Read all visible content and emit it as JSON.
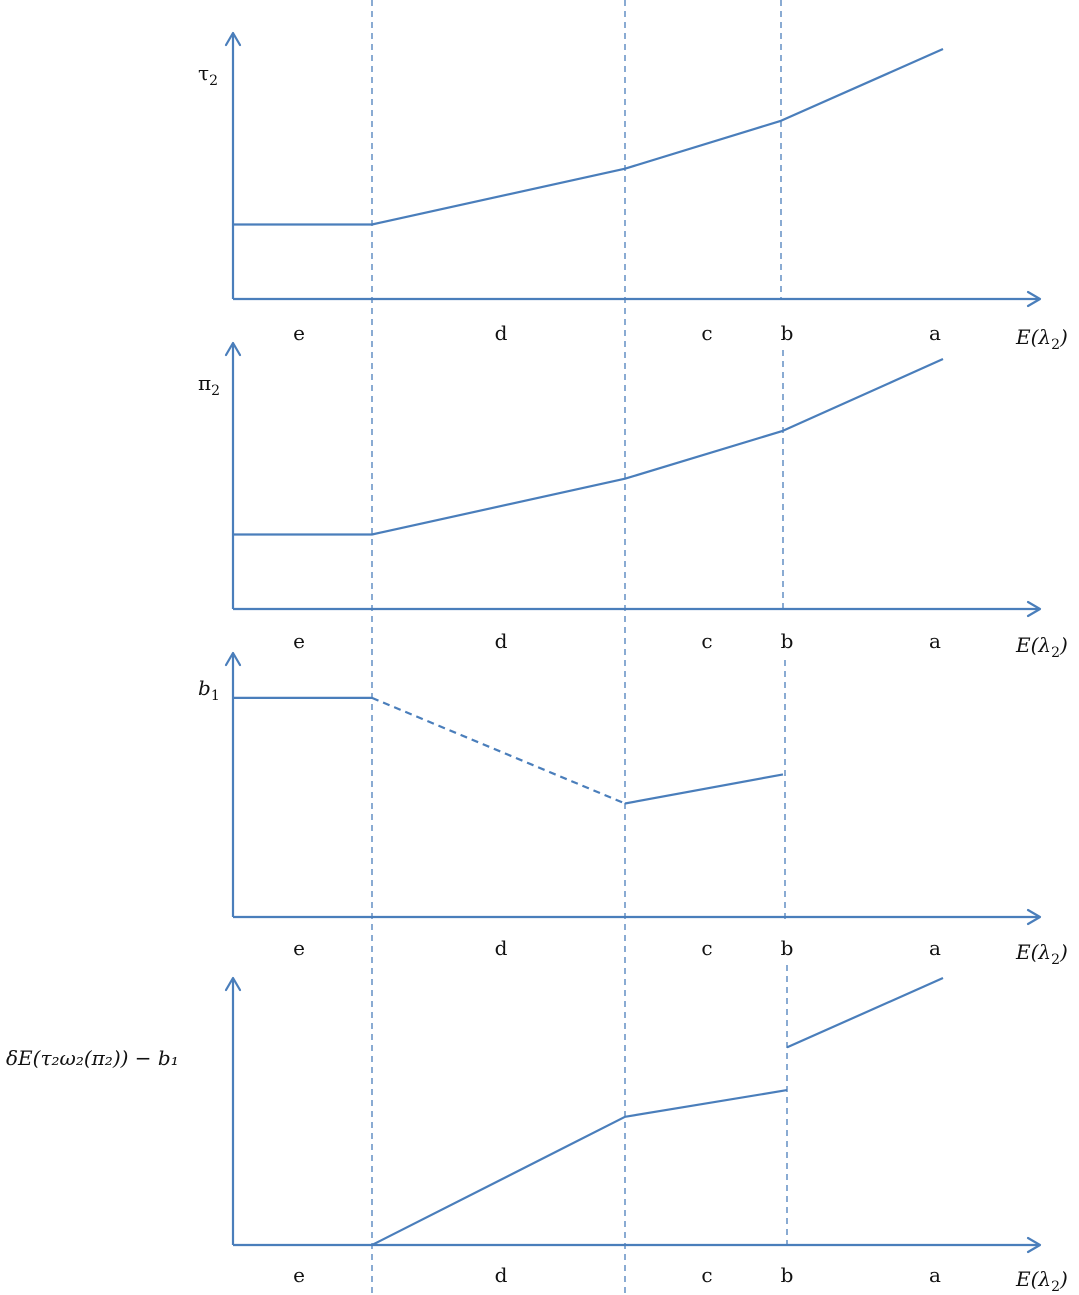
{
  "regions": [
    "e",
    "d",
    "c",
    "b",
    "a"
  ],
  "x_axis_label": {
    "base": "E(λ",
    "sub": "2",
    "tail": ")"
  },
  "panels": [
    {
      "id": "tau2",
      "y_label": {
        "base": "τ",
        "sub": "2"
      },
      "segments": [
        {
          "style": "solid",
          "points": [
            [
              0,
              0.28
            ],
            [
              1,
              0.28
            ],
            [
              2,
              0.49
            ],
            [
              3,
              0.67
            ],
            [
              4,
              0.94
            ]
          ]
        }
      ]
    },
    {
      "id": "pi2",
      "y_label": {
        "base": "π",
        "sub": "2"
      },
      "segments": [
        {
          "style": "solid",
          "points": [
            [
              0,
              0.28
            ],
            [
              1,
              0.28
            ],
            [
              2,
              0.49
            ],
            [
              3,
              0.67
            ],
            [
              4,
              0.94
            ]
          ]
        }
      ]
    },
    {
      "id": "b1",
      "y_label": {
        "base": "b",
        "sub": "1"
      },
      "segments": [
        {
          "style": "solid",
          "points": [
            [
              0,
              0.83
            ],
            [
              1,
              0.83
            ]
          ]
        },
        {
          "style": "dashed",
          "points": [
            [
              1,
              0.83
            ],
            [
              2,
              0.43
            ]
          ]
        },
        {
          "style": "solid",
          "points": [
            [
              2,
              0.43
            ],
            [
              3,
              0.54
            ]
          ]
        }
      ]
    },
    {
      "id": "surplus",
      "y_label": {
        "text": "δE(τ₂ω₂(π₂)) − b₁"
      },
      "segments": [
        {
          "style": "solid",
          "points": [
            [
              1,
              0.0
            ],
            [
              2,
              0.48
            ],
            [
              3,
              0.58
            ]
          ]
        },
        {
          "style": "solid",
          "points": [
            [
              3,
              0.74
            ],
            [
              4,
              1.0
            ]
          ]
        }
      ]
    }
  ],
  "colors": {
    "line": "#4a7ebb",
    "text": "#111111"
  }
}
